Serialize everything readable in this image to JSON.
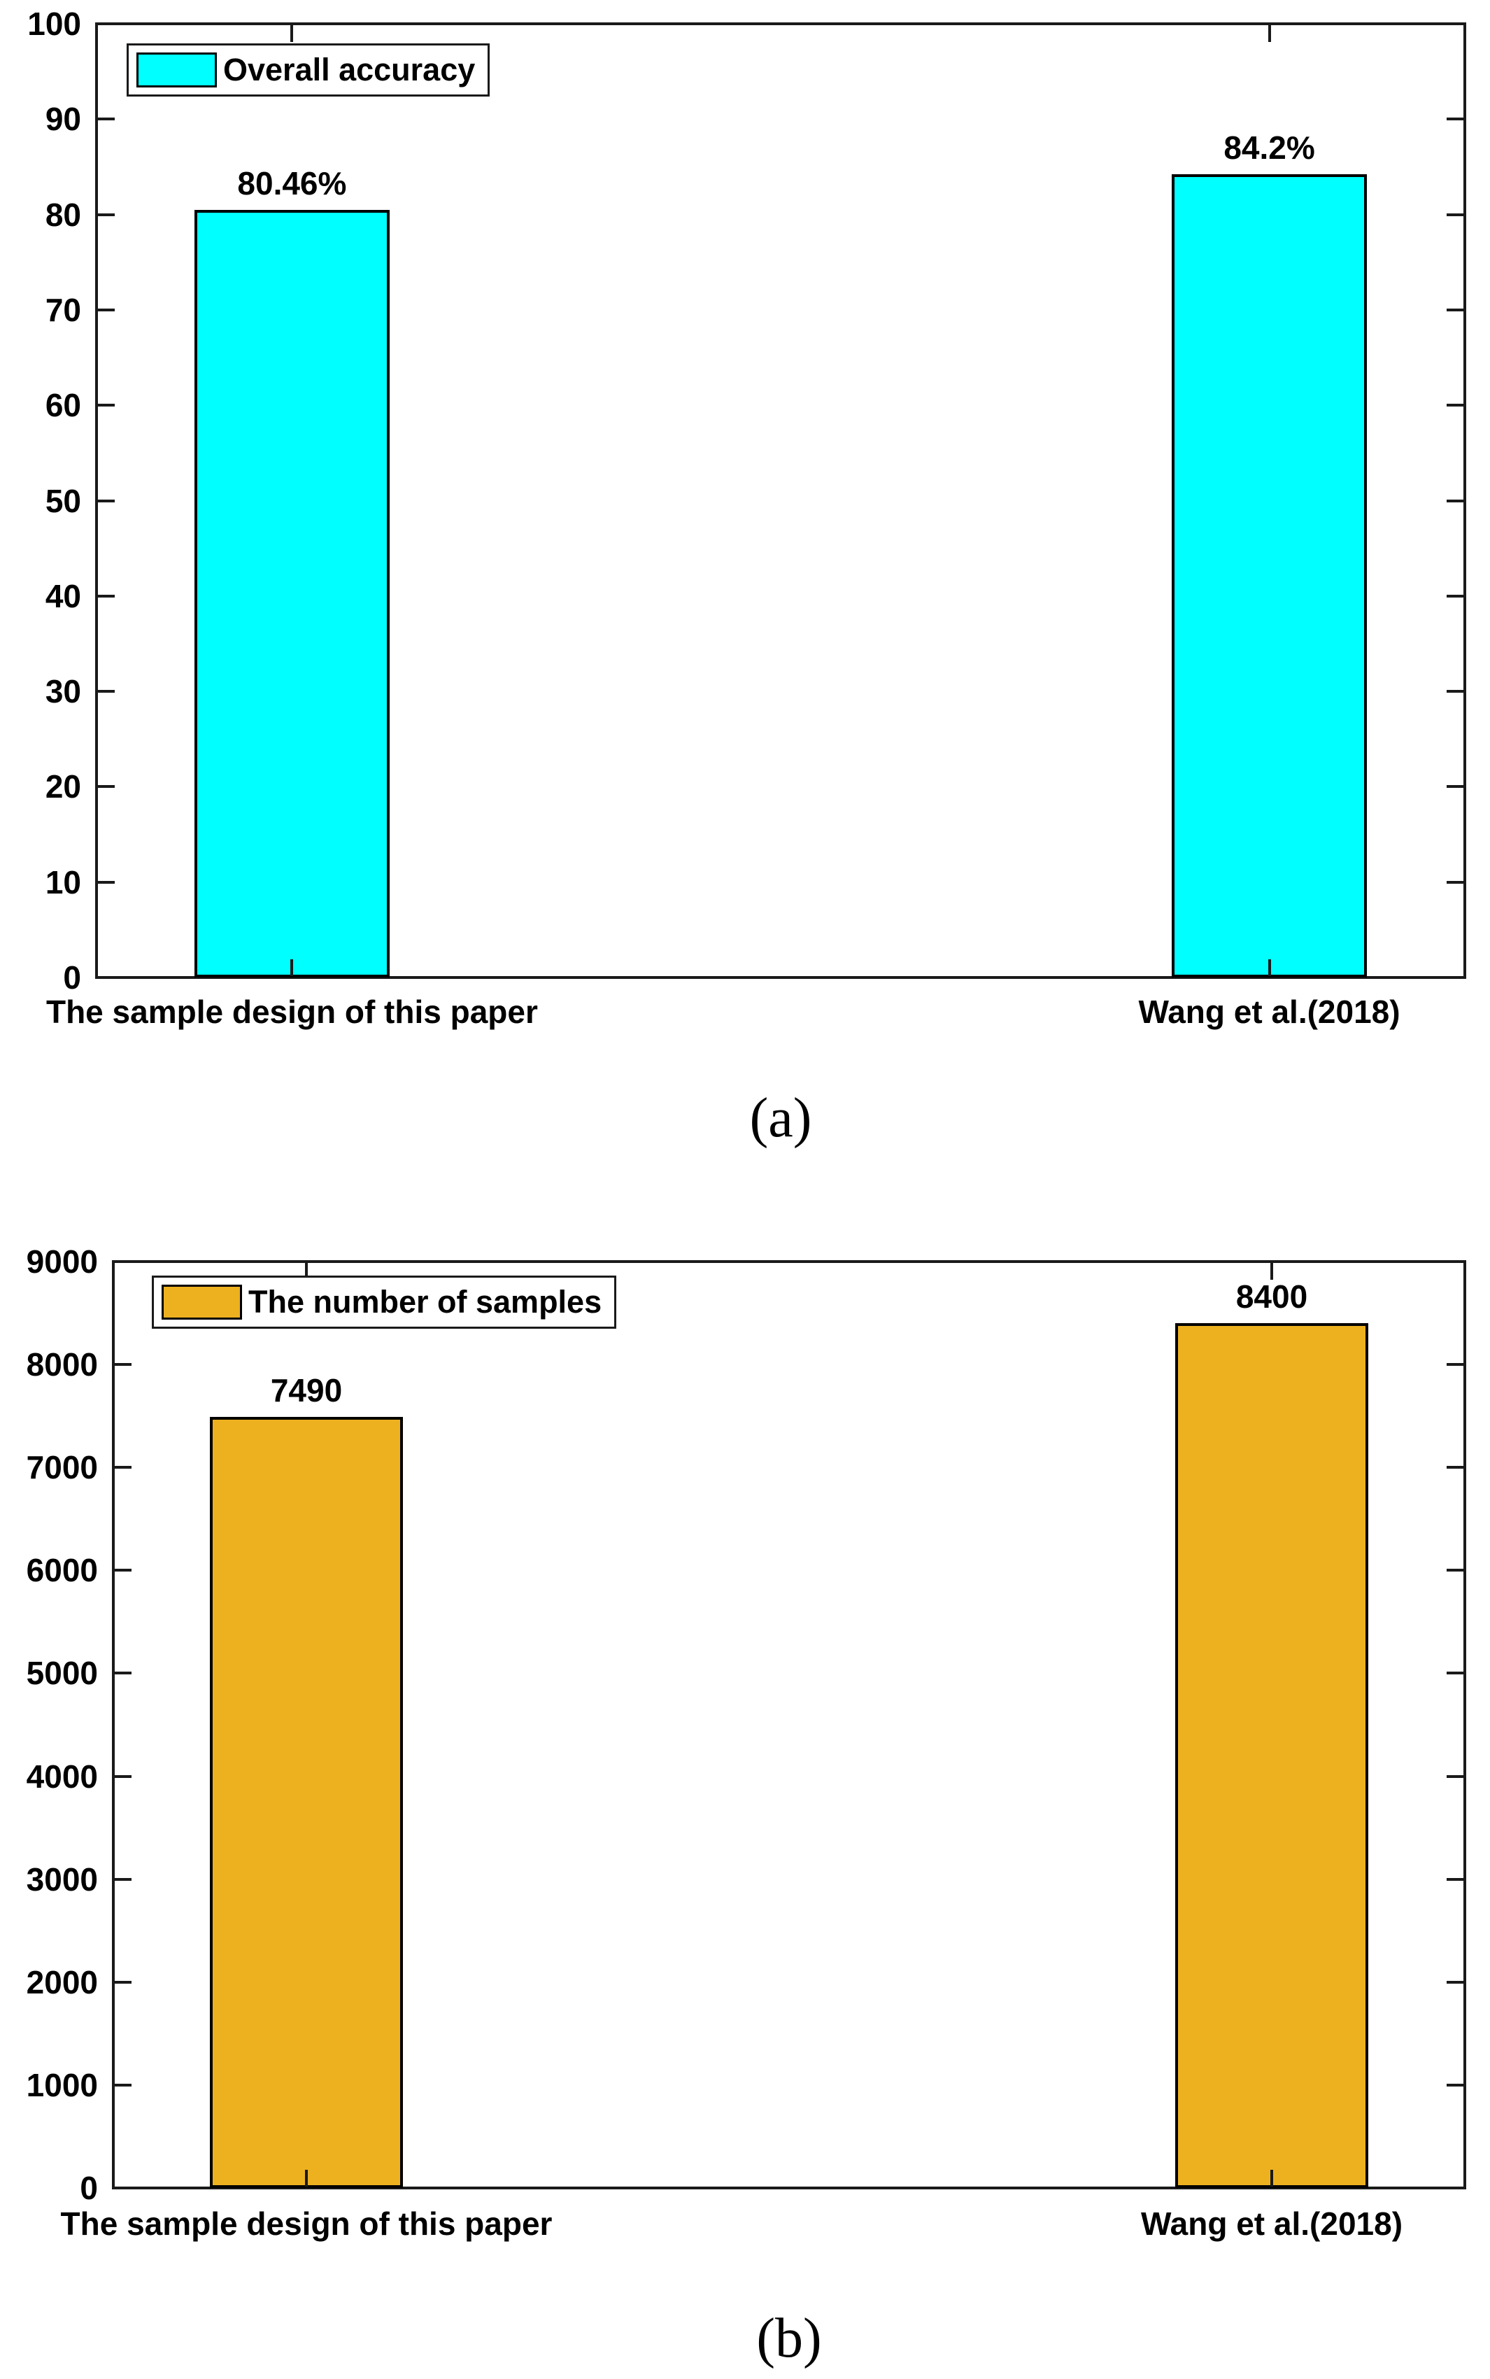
{
  "figure": {
    "background": "#ffffff",
    "text_color": "#000000",
    "axis_color": "#1a1a1a"
  },
  "chart_data": [
    {
      "type": "bar",
      "caption": "(a)",
      "legend": "Overall accuracy",
      "legend_position": "top-left",
      "categories": [
        "The sample design of this paper",
        "Wang et al.(2018)"
      ],
      "values": [
        80.46,
        84.2
      ],
      "value_labels": [
        "80.46%",
        "84.2%"
      ],
      "ylim": [
        0,
        100
      ],
      "ytick_step": 10,
      "ytick_labels": [
        "0",
        "10",
        "20",
        "30",
        "40",
        "50",
        "60",
        "70",
        "80",
        "90",
        "100"
      ],
      "xlabel": "",
      "ylabel": "",
      "grid": false,
      "bar_color": "#00FFFF",
      "bar_edge_color": "#000000",
      "axis_color": "#1a1a1a"
    },
    {
      "type": "bar",
      "caption": "(b)",
      "legend": "The number of samples",
      "legend_position": "top-left",
      "categories": [
        "The sample design of this paper",
        "Wang et al.(2018)"
      ],
      "values": [
        7490,
        8400
      ],
      "value_labels": [
        "7490",
        "8400"
      ],
      "ylim": [
        0,
        9000
      ],
      "ytick_step": 1000,
      "ytick_labels": [
        "0",
        "1000",
        "2000",
        "3000",
        "4000",
        "5000",
        "6000",
        "7000",
        "8000",
        "9000"
      ],
      "xlabel": "",
      "ylabel": "",
      "grid": false,
      "bar_color": "#EDB120",
      "bar_edge_color": "#000000",
      "axis_color": "#1a1a1a"
    }
  ]
}
